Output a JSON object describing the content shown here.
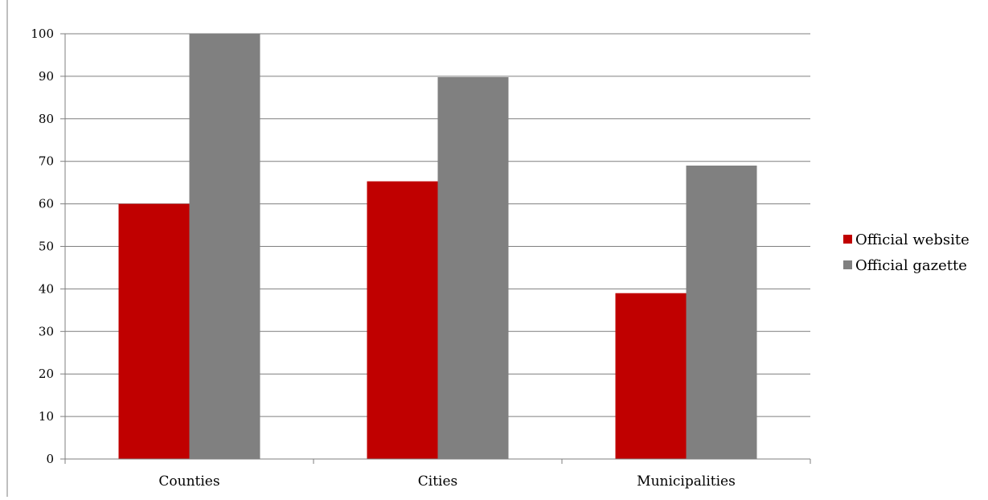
{
  "chart_data": {
    "type": "bar",
    "categories": [
      "Counties",
      "Cities",
      "Municipalities"
    ],
    "series": [
      {
        "name": "Official website",
        "values": [
          60,
          65.3,
          39
        ],
        "color": "#c00000"
      },
      {
        "name": "Official gazette",
        "values": [
          100,
          89.8,
          69
        ],
        "color": "#808080"
      }
    ],
    "yticks": [
      "0",
      "10",
      "20",
      "30",
      "40",
      "50",
      "60",
      "70",
      "80",
      "90",
      "100"
    ],
    "ylim": [
      0,
      100
    ],
    "grid": true,
    "legend_position": "right"
  }
}
